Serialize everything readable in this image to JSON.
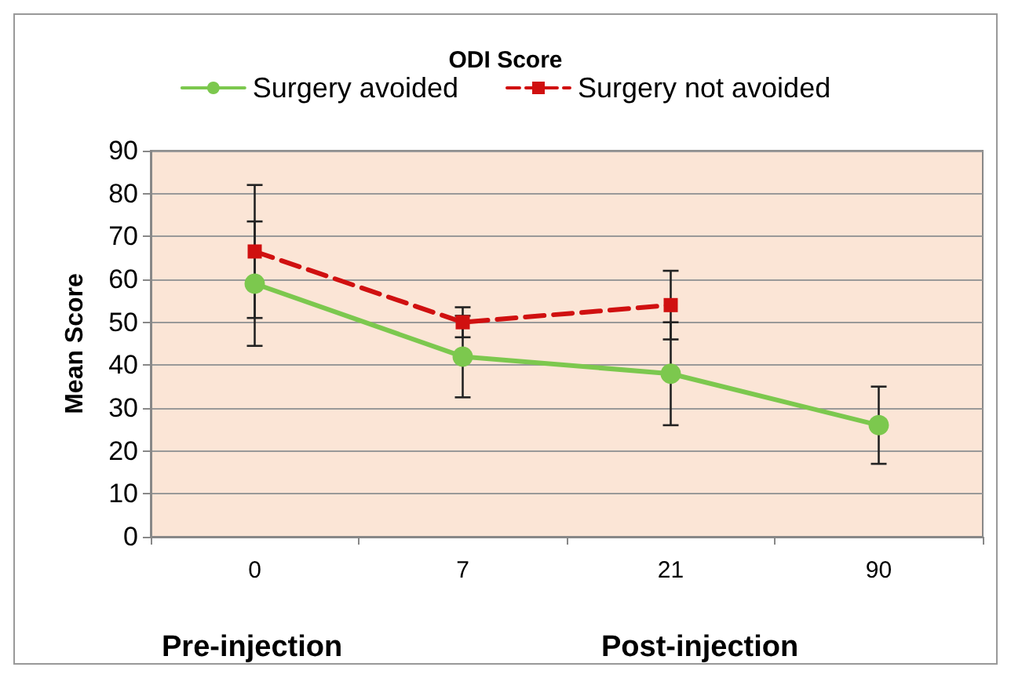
{
  "chart_data": {
    "type": "line",
    "title": "ODI Score",
    "ylabel": "Mean Score",
    "categories": [
      "0",
      "7",
      "21",
      "90"
    ],
    "series": [
      {
        "name": "Surgery avoided",
        "color": "#7cc84e",
        "values": [
          59,
          42,
          38,
          26
        ],
        "errors": [
          14.5,
          9.5,
          12,
          9
        ],
        "marker": "circle",
        "line_style": "solid"
      },
      {
        "name": "Surgery not avoided",
        "color": "#d01010",
        "values": [
          66.5,
          50,
          54,
          null
        ],
        "errors": [
          15.5,
          3.5,
          8,
          null
        ],
        "marker": "square",
        "line_style": "dashed"
      }
    ],
    "ylim": [
      0,
      90
    ],
    "yticks": [
      0,
      10,
      20,
      30,
      40,
      50,
      60,
      70,
      80,
      90
    ],
    "grid": "y",
    "legend": "top",
    "annotations": [
      "Pre-injection",
      "Post-injection"
    ]
  }
}
